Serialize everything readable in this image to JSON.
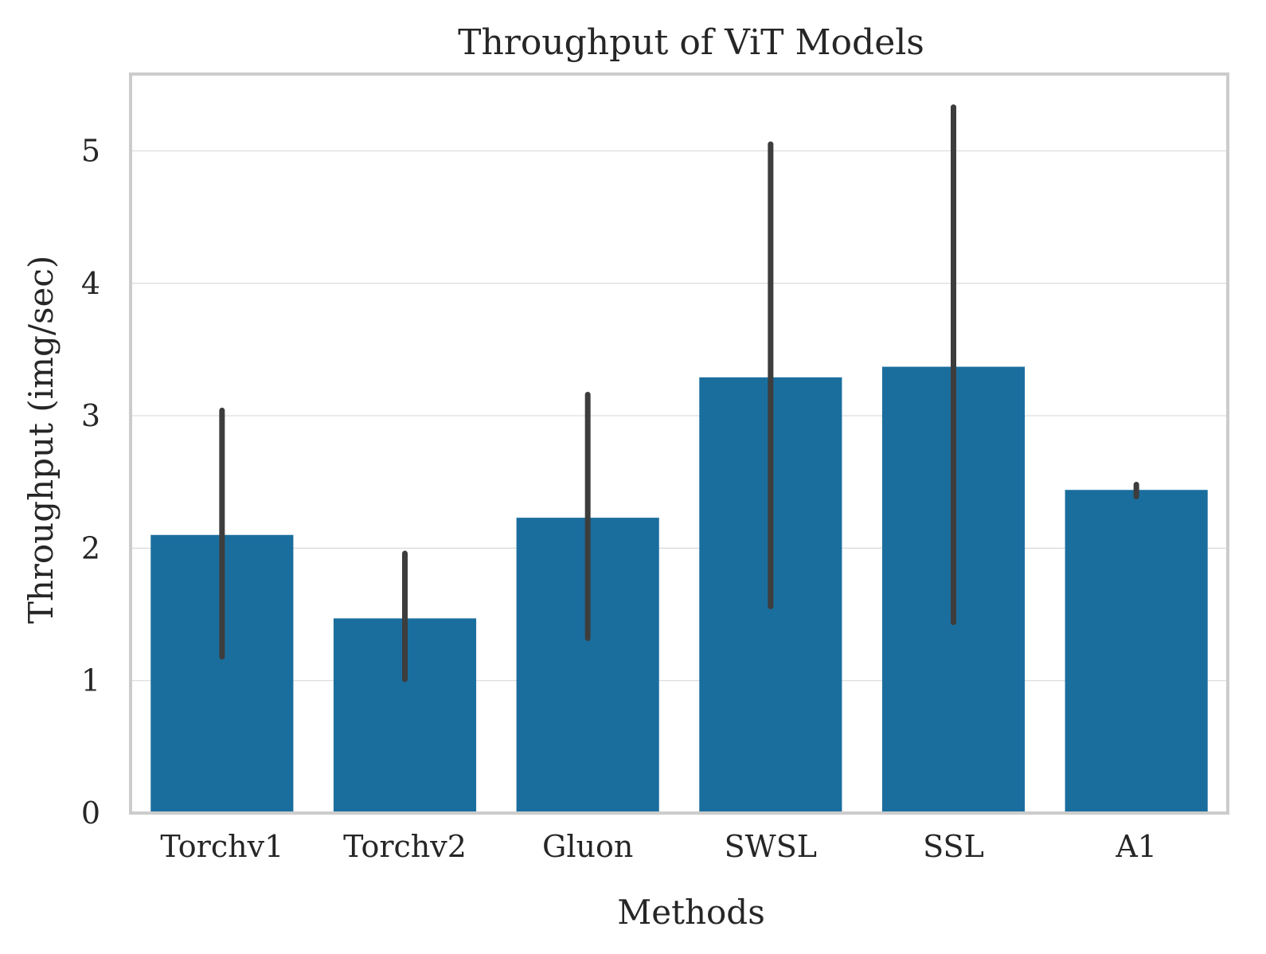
{
  "chart_data": {
    "type": "bar",
    "title": "Throughput of ViT Models",
    "xlabel": "Methods",
    "ylabel": "Throughput (img/sec)",
    "categories": [
      "Torchv1",
      "Torchv2",
      "Gluon",
      "SWSL",
      "SSL",
      "A1"
    ],
    "values": [
      2.1,
      1.47,
      2.23,
      3.29,
      3.37,
      2.44
    ],
    "error_bars": [
      {
        "low": 1.18,
        "high": 3.04
      },
      {
        "low": 1.01,
        "high": 1.96
      },
      {
        "low": 1.32,
        "high": 3.16
      },
      {
        "low": 1.56,
        "high": 5.05
      },
      {
        "low": 1.44,
        "high": 5.33
      },
      {
        "low": 2.39,
        "high": 2.48
      }
    ],
    "yticks": [
      "0",
      "1",
      "2",
      "3",
      "4",
      "5"
    ],
    "ylim": [
      0,
      5.58
    ],
    "grid": true,
    "colors": {
      "bar": "#1a6e9e",
      "error_bar": "#3d3d3d",
      "grid": "#d9d9d9",
      "frame": "#cccccc"
    }
  }
}
